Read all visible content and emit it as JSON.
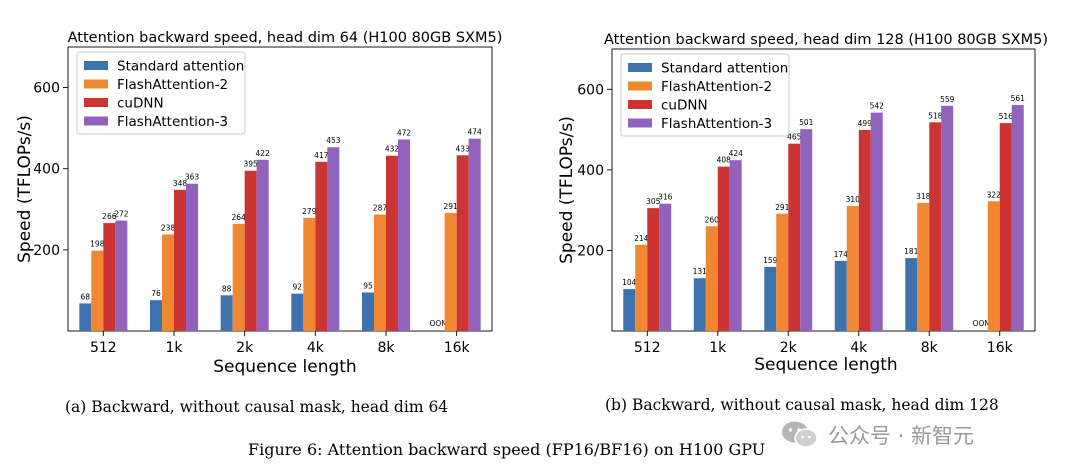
{
  "chart_data": [
    {
      "type": "bar",
      "title": "Attention backward speed, head dim 64 (H100 80GB SXM5)",
      "xlabel": "Sequence length",
      "ylabel": "Speed (TFLOPs/s)",
      "ylim": [
        0,
        700
      ],
      "yticks": [
        200,
        400,
        600
      ],
      "legend_position": "top-left",
      "categories": [
        "512",
        "1k",
        "2k",
        "4k",
        "8k",
        "16k"
      ],
      "series": [
        {
          "name": "Standard attention",
          "color": "#3d72ad",
          "values": [
            68,
            76,
            88,
            92,
            95,
            null
          ],
          "labels": [
            "68",
            "76",
            "88",
            "92",
            "95",
            "OOM"
          ]
        },
        {
          "name": "FlashAttention-2",
          "color": "#ef8733",
          "values": [
            198,
            238,
            264,
            279,
            287,
            291
          ],
          "labels": [
            "198",
            "238",
            "264",
            "279",
            "287",
            "291"
          ]
        },
        {
          "name": "cuDNN",
          "color": "#cb3433",
          "values": [
            266,
            348,
            395,
            417,
            432,
            433
          ],
          "labels": [
            "266",
            "348",
            "395",
            "417",
            "432",
            "433"
          ]
        },
        {
          "name": "FlashAttention-3",
          "color": "#9163bd",
          "values": [
            272,
            363,
            422,
            453,
            472,
            474
          ],
          "labels": [
            "272",
            "363",
            "422",
            "453",
            "472",
            "474"
          ]
        }
      ]
    },
    {
      "type": "bar",
      "title": "Attention backward speed, head dim 128 (H100 80GB SXM5)",
      "xlabel": "Sequence length",
      "ylabel": "Speed (TFLOPs/s)",
      "ylim": [
        0,
        700
      ],
      "yticks": [
        200,
        400,
        600
      ],
      "legend_position": "top-left",
      "categories": [
        "512",
        "1k",
        "2k",
        "4k",
        "8k",
        "16k"
      ],
      "series": [
        {
          "name": "Standard attention",
          "color": "#3d72ad",
          "values": [
            104,
            131,
            159,
            174,
            181,
            null
          ],
          "labels": [
            "104",
            "131",
            "159",
            "174",
            "181",
            "OOM"
          ]
        },
        {
          "name": "FlashAttention-2",
          "color": "#ef8733",
          "values": [
            214,
            260,
            291,
            310,
            318,
            322
          ],
          "labels": [
            "214",
            "260",
            "291",
            "310",
            "318",
            "322"
          ]
        },
        {
          "name": "cuDNN",
          "color": "#cb3433",
          "values": [
            305,
            408,
            465,
            499,
            518,
            516
          ],
          "labels": [
            "305",
            "408",
            "465",
            "499",
            "518",
            "516"
          ]
        },
        {
          "name": "FlashAttention-3",
          "color": "#9163bd",
          "values": [
            316,
            424,
            501,
            542,
            559,
            561
          ],
          "labels": [
            "316",
            "424",
            "501",
            "542",
            "559",
            "561"
          ]
        }
      ]
    }
  ],
  "captions": {
    "a": "(a) Backward, without causal mask, head dim 64",
    "b": "(b) Backward, without causal mask, head dim 128",
    "figure": "Figure 6: Attention backward speed (FP16/BF16) on H100 GPU"
  },
  "watermark": {
    "text": "公众号 · 新智元",
    "icon": "wechat-icon"
  }
}
